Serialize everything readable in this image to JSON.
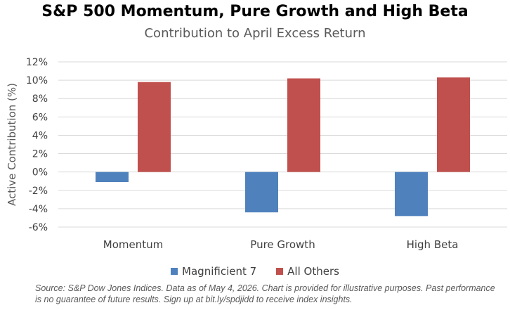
{
  "chart_data": {
    "type": "bar",
    "title": "S&P 500 Momentum, Pure Growth and High Beta",
    "subtitle": "Contribution to April Excess Return",
    "xlabel": "",
    "ylabel": "Active Contribution (%)",
    "categories": [
      "Momentum",
      "Pure Growth",
      "High Beta"
    ],
    "series": [
      {
        "name": "Magnificient 7",
        "color": "#4f81bd",
        "values": [
          -1.1,
          -4.4,
          -4.8
        ]
      },
      {
        "name": "All Others",
        "color": "#c0504d",
        "values": [
          9.8,
          10.2,
          10.3
        ]
      }
    ],
    "ylim": [
      -6,
      12
    ],
    "yticks": [
      -6,
      -4,
      -2,
      0,
      2,
      4,
      6,
      8,
      10,
      12
    ],
    "ytick_labels": [
      "-6%",
      "-4%",
      "-2%",
      "0%",
      "2%",
      "4%",
      "6%",
      "8%",
      "10%",
      "12%"
    ],
    "grid": true,
    "legend_position": "bottom"
  },
  "source_text": "Source: S&P Dow Jones Indices. Data as of May 4, 2026. Chart is provided for illustrative purposes. Past performance is no guarantee of future results. Sign up at bit.ly/spdjidd to receive index insights."
}
